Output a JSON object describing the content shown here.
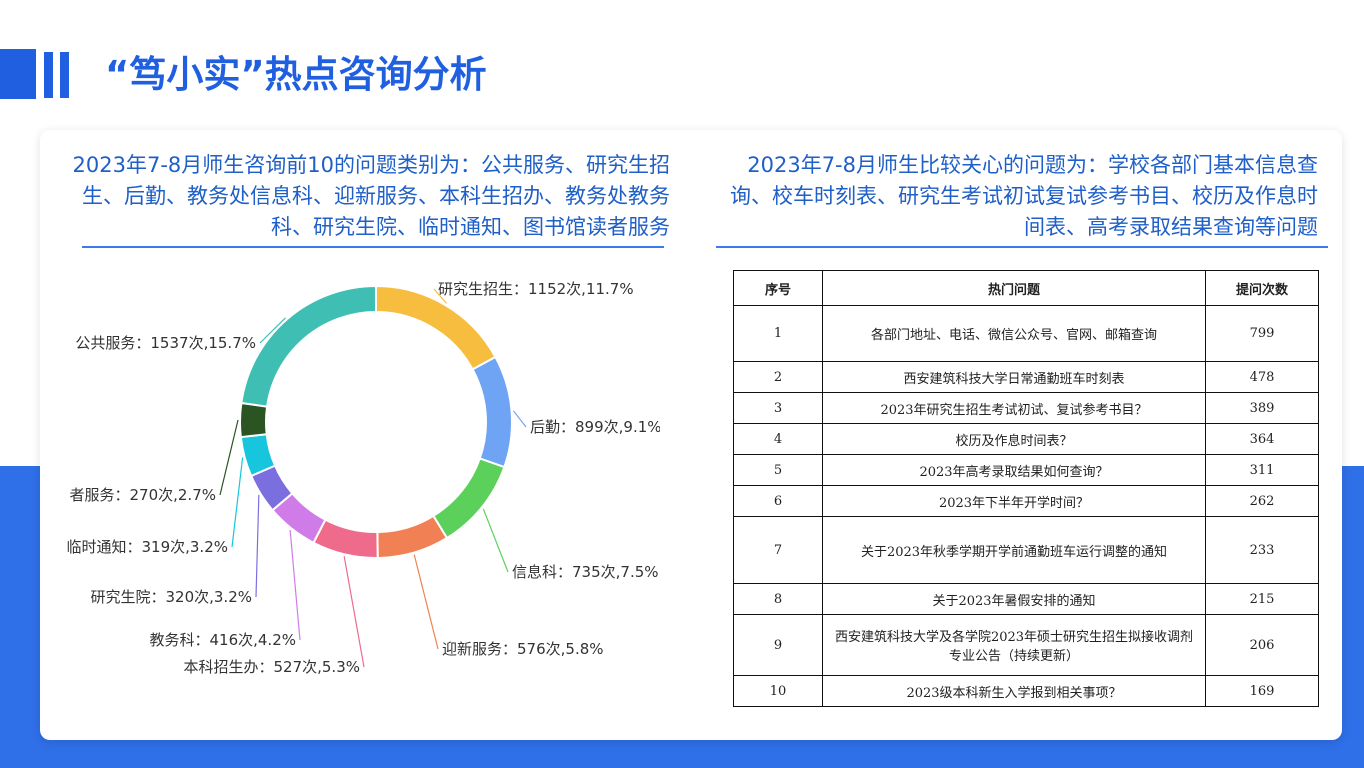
{
  "page": {
    "title": "“笃小实”热点咨询分析"
  },
  "left_summary": "2023年7-8月师生咨询前10的问题类别为：公共服务、研究生招生、后勤、教务处信息科、迎新服务、本科生招办、教务处教务科、研究生院、临时通知、图书馆读者服务",
  "right_summary": "2023年7-8月师生比较关心的问题为：学校各部门基本信息查询、校车时刻表、研究生考试初试复试参考书目、校历及作息时间表、高考录取结果查询等问题",
  "colors": {
    "accent": "#1f5fe0",
    "band": "#2f6fe8"
  },
  "chart_data": {
    "type": "pie",
    "style": "donut",
    "slices": [
      {
        "label": "研究生招生：1152次,11.7%",
        "name": "研究生招生",
        "value": 1152,
        "percent": 11.7,
        "color": "#f7bd3f"
      },
      {
        "label": "后勤：899次,9.1%",
        "name": "后勤",
        "value": 899,
        "percent": 9.1,
        "color": "#6ea4f3"
      },
      {
        "label": "信息科：735次,7.5%",
        "name": "信息科",
        "value": 735,
        "percent": 7.5,
        "color": "#5bd15b"
      },
      {
        "label": "迎新服务：576次,5.8%",
        "name": "迎新服务",
        "value": 576,
        "percent": 5.8,
        "color": "#f28055"
      },
      {
        "label": "本科招生办：527次,5.3%",
        "name": "本科招生办",
        "value": 527,
        "percent": 5.3,
        "color": "#ef6b8c"
      },
      {
        "label": "教务科：416次,4.2%",
        "name": "教务科",
        "value": 416,
        "percent": 4.2,
        "color": "#d07ce8"
      },
      {
        "label": "研究生院：320次,3.2%",
        "name": "研究生院",
        "value": 320,
        "percent": 3.2,
        "color": "#7b6fe0"
      },
      {
        "label": "临时通知：319次,3.2%",
        "name": "临时通知",
        "value": 319,
        "percent": 3.2,
        "color": "#17c6dc"
      },
      {
        "label": "者服务：270次,2.7%",
        "name": "读者服务",
        "value": 270,
        "percent": 2.7,
        "color": "#2a5522"
      },
      {
        "label": "公共服务：1537次,15.7%",
        "name": "公共服务",
        "value": 1537,
        "percent": 15.7,
        "color": "#3fbfb4"
      }
    ]
  },
  "table": {
    "headers": [
      "序号",
      "热门问题",
      "提问次数"
    ],
    "rows": [
      [
        "1",
        "各部门地址、电话、微信公众号、官网、邮箱查询",
        "799"
      ],
      [
        "2",
        "西安建筑科技大学日常通勤班车时刻表",
        "478"
      ],
      [
        "3",
        "2023年研究生招生考试初试、复试参考书目？",
        "389"
      ],
      [
        "4",
        "校历及作息时间表？",
        "364"
      ],
      [
        "5",
        "2023年高考录取结果如何查询？",
        "311"
      ],
      [
        "6",
        "2023年下半年开学时间？",
        "262"
      ],
      [
        "7",
        "关于2023年秋季学期开学前通勤班车运行调整的通知",
        "233"
      ],
      [
        "8",
        "关于2023年暑假安排的通知",
        "215"
      ],
      [
        "9",
        "西安建筑科技大学及各学院2023年硕士研究生招生拟接收调剂专业公告（持续更新）",
        "206"
      ],
      [
        "10",
        "2023级本科新生入学报到相关事项？",
        "169"
      ]
    ]
  }
}
